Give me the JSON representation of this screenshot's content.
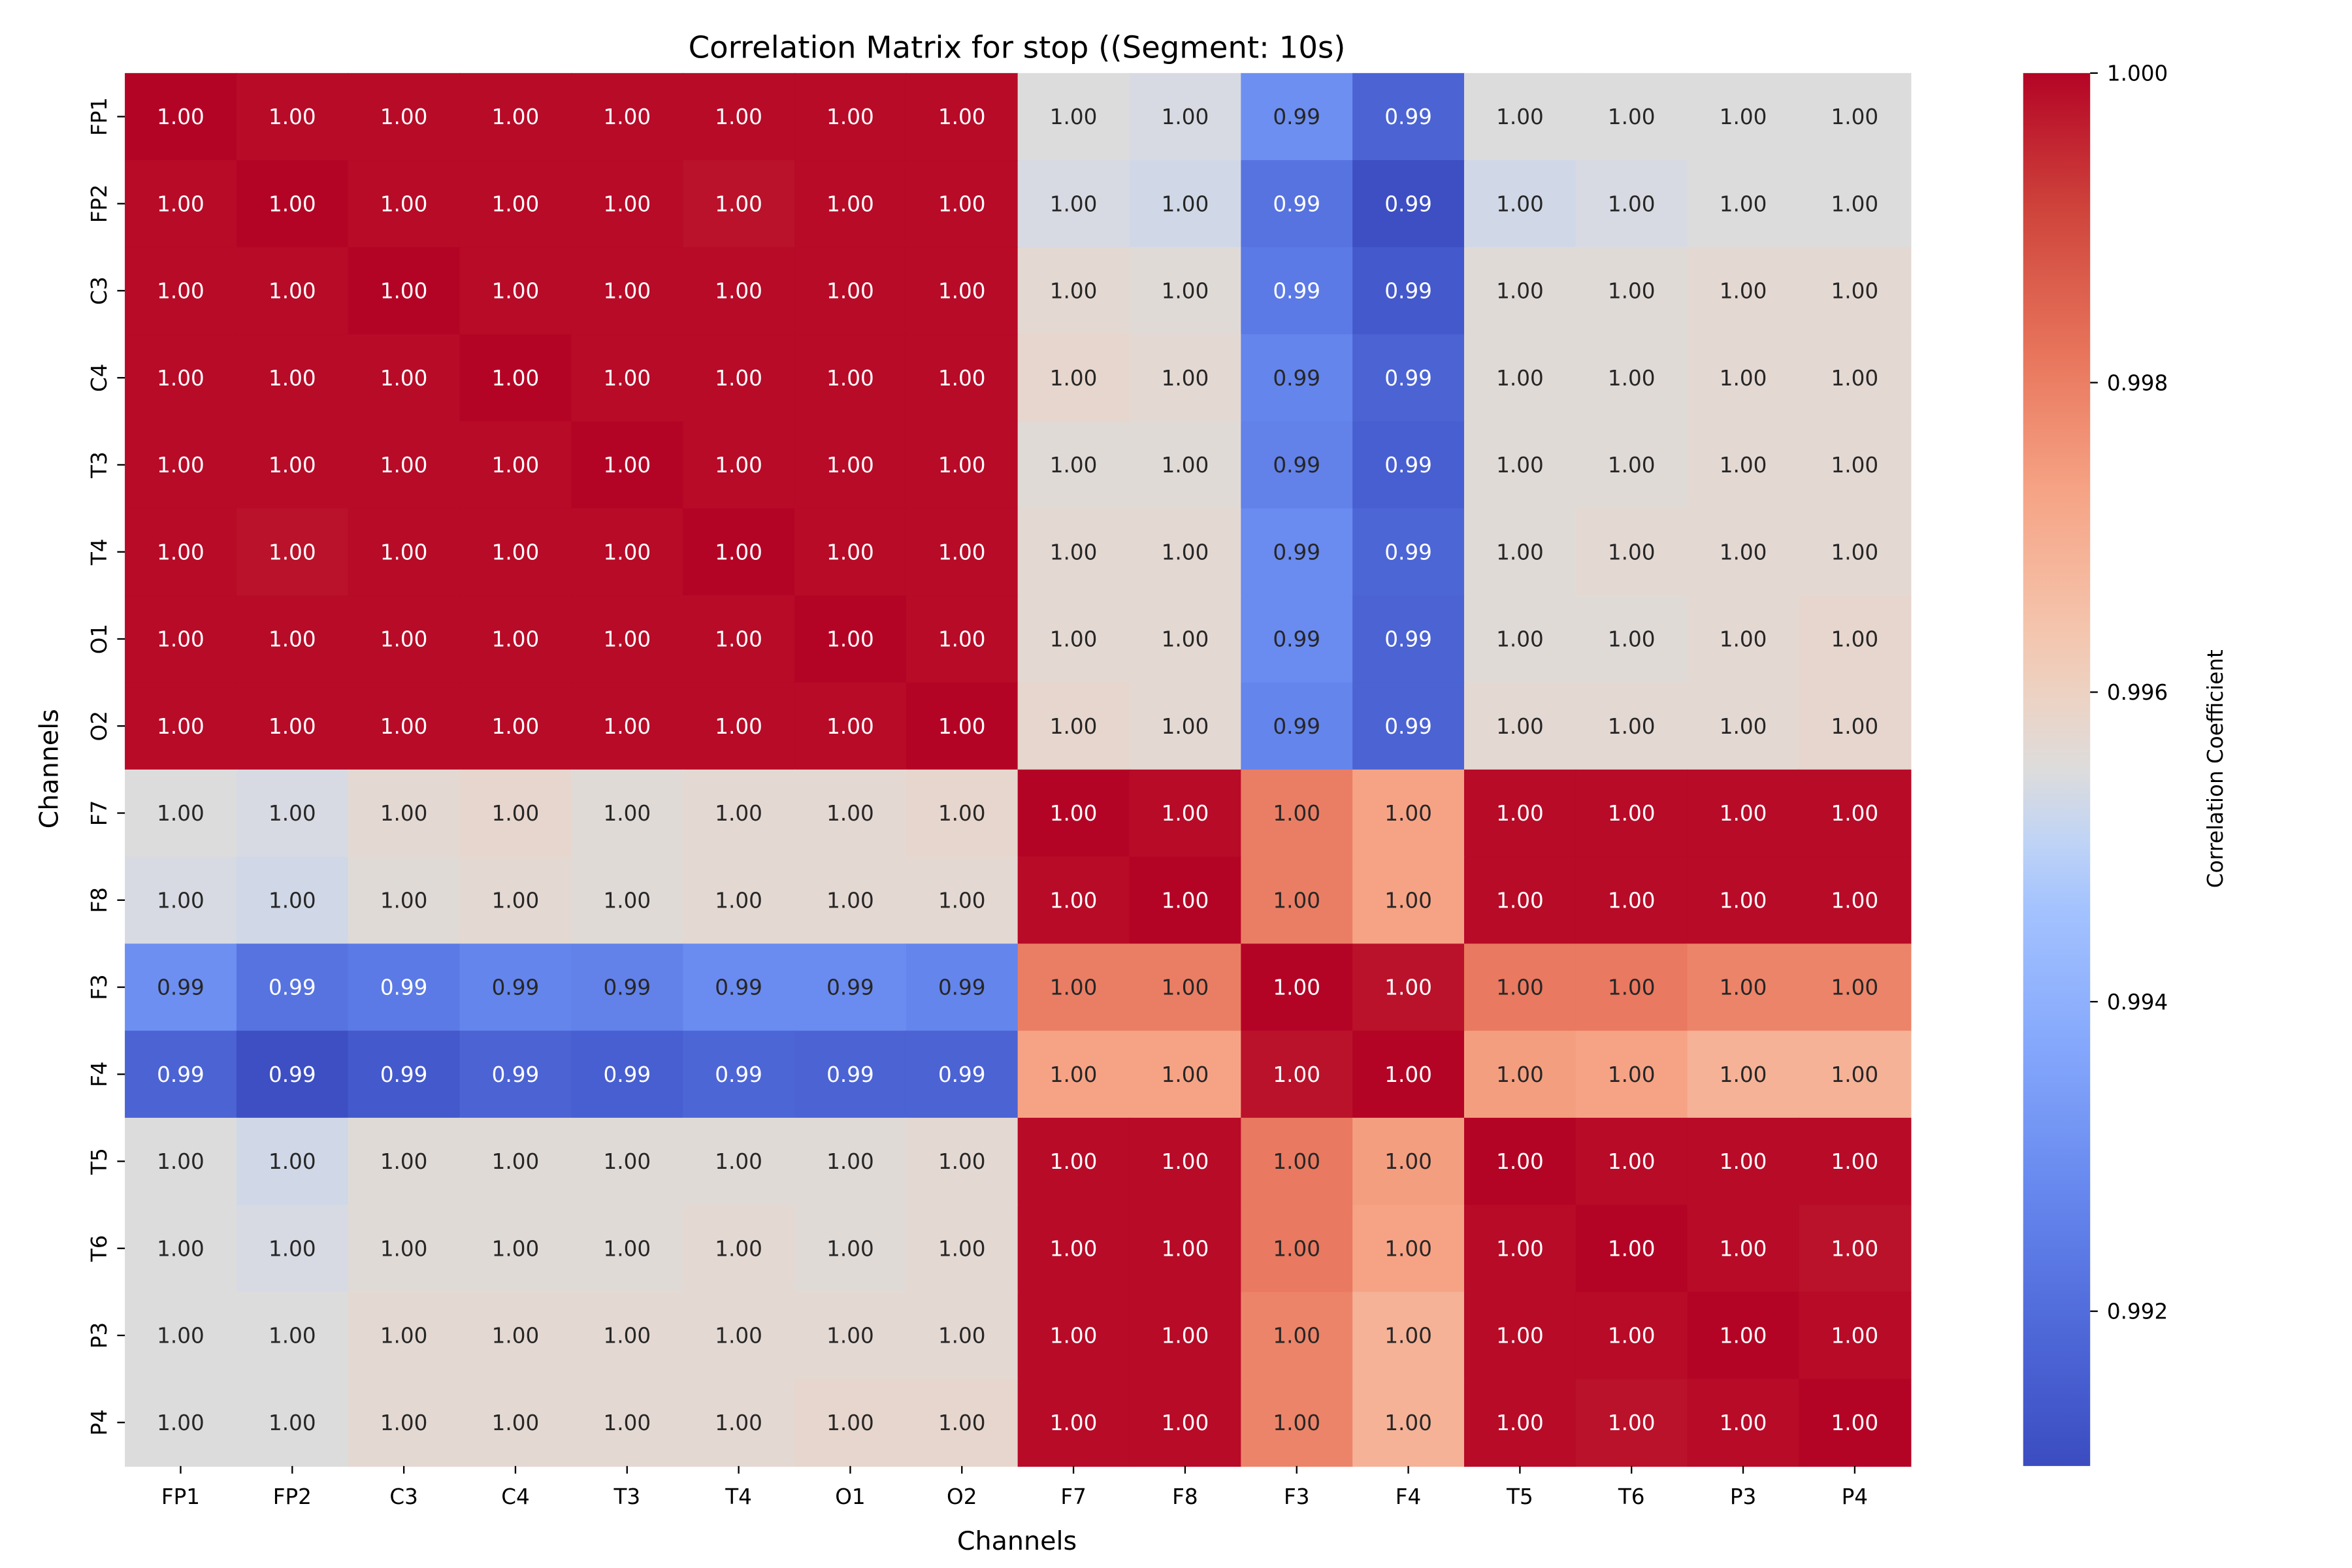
{
  "chart_data": {
    "type": "heatmap",
    "title": "Correlation Matrix for stop ((Segment: 10s)",
    "xlabel": "Channels",
    "ylabel": "Channels",
    "labels": [
      "FP1",
      "FP2",
      "C3",
      "C4",
      "T3",
      "T4",
      "O1",
      "O2",
      "F7",
      "F8",
      "F3",
      "F4",
      "T5",
      "T6",
      "P3",
      "P4"
    ],
    "colormap": "coolwarm",
    "vmin": 0.991,
    "vmax": 1.0,
    "colorbar": {
      "label": "Correlation Coefficient",
      "ticks": [
        0.992,
        0.994,
        0.996,
        0.998,
        1.0
      ],
      "tick_labels": [
        "0.992",
        "0.994",
        "0.996",
        "0.998",
        "1.000"
      ]
    },
    "annotation_format": "2 decimals",
    "matrix": [
      [
        1.0,
        0.9999,
        0.9999,
        0.9999,
        0.9999,
        0.9999,
        0.9999,
        0.9999,
        0.9955,
        0.9954,
        0.993,
        0.9917,
        0.9955,
        0.9955,
        0.9955,
        0.9955
      ],
      [
        0.9999,
        1.0,
        0.9999,
        0.9999,
        0.9999,
        0.9998,
        0.9999,
        0.9999,
        0.9954,
        0.9953,
        0.9922,
        0.9911,
        0.9953,
        0.9954,
        0.9955,
        0.9955
      ],
      [
        0.9999,
        0.9999,
        1.0,
        0.9999,
        0.9999,
        0.9999,
        0.9999,
        0.9999,
        0.9957,
        0.9956,
        0.9924,
        0.9914,
        0.9956,
        0.9956,
        0.9957,
        0.9957
      ],
      [
        0.9999,
        0.9999,
        0.9999,
        1.0,
        0.9999,
        0.9999,
        0.9999,
        0.9999,
        0.9958,
        0.9957,
        0.9927,
        0.9917,
        0.9956,
        0.9956,
        0.9957,
        0.9957
      ],
      [
        0.9999,
        0.9999,
        0.9999,
        0.9999,
        1.0,
        0.9999,
        0.9999,
        0.9999,
        0.9956,
        0.9956,
        0.9926,
        0.9916,
        0.9956,
        0.9956,
        0.9957,
        0.9957
      ],
      [
        0.9999,
        0.9998,
        0.9999,
        0.9999,
        0.9999,
        1.0,
        0.9999,
        0.9999,
        0.9957,
        0.9957,
        0.9929,
        0.9918,
        0.9956,
        0.9957,
        0.9957,
        0.9957
      ],
      [
        0.9999,
        0.9999,
        0.9999,
        0.9999,
        0.9999,
        0.9999,
        1.0,
        0.9999,
        0.9957,
        0.9957,
        0.9929,
        0.9917,
        0.9956,
        0.9956,
        0.9957,
        0.9958
      ],
      [
        0.9999,
        0.9999,
        0.9999,
        0.9999,
        0.9999,
        0.9999,
        0.9999,
        1.0,
        0.9958,
        0.9957,
        0.9927,
        0.9917,
        0.9957,
        0.9957,
        0.9957,
        0.9958
      ],
      [
        0.9955,
        0.9954,
        0.9957,
        0.9958,
        0.9956,
        0.9957,
        0.9957,
        0.9958,
        1.0,
        0.9999,
        0.998,
        0.9973,
        0.9999,
        0.9999,
        0.9999,
        0.9999
      ],
      [
        0.9954,
        0.9953,
        0.9956,
        0.9957,
        0.9956,
        0.9957,
        0.9957,
        0.9957,
        0.9999,
        1.0,
        0.998,
        0.9973,
        0.9999,
        0.9999,
        0.9999,
        0.9999
      ],
      [
        0.993,
        0.9922,
        0.9924,
        0.9927,
        0.9926,
        0.9929,
        0.9929,
        0.9927,
        0.998,
        0.998,
        1.0,
        0.9998,
        0.9981,
        0.9981,
        0.9979,
        0.9979
      ],
      [
        0.9917,
        0.9911,
        0.9914,
        0.9917,
        0.9916,
        0.9918,
        0.9917,
        0.9917,
        0.9973,
        0.9973,
        0.9998,
        1.0,
        0.9974,
        0.9973,
        0.9969,
        0.9969
      ],
      [
        0.9955,
        0.9953,
        0.9956,
        0.9956,
        0.9956,
        0.9956,
        0.9956,
        0.9957,
        0.9999,
        0.9999,
        0.9981,
        0.9974,
        1.0,
        0.9999,
        0.9999,
        0.9999
      ],
      [
        0.9955,
        0.9954,
        0.9956,
        0.9956,
        0.9956,
        0.9957,
        0.9956,
        0.9957,
        0.9999,
        0.9999,
        0.9981,
        0.9973,
        0.9999,
        1.0,
        0.9999,
        0.9998
      ],
      [
        0.9955,
        0.9955,
        0.9957,
        0.9957,
        0.9957,
        0.9957,
        0.9957,
        0.9957,
        0.9999,
        0.9999,
        0.9979,
        0.9969,
        0.9999,
        0.9999,
        1.0,
        0.9999
      ],
      [
        0.9955,
        0.9955,
        0.9957,
        0.9957,
        0.9957,
        0.9957,
        0.9958,
        0.9958,
        0.9999,
        0.9999,
        0.9979,
        0.9969,
        0.9999,
        0.9998,
        0.9999,
        1.0
      ]
    ]
  }
}
